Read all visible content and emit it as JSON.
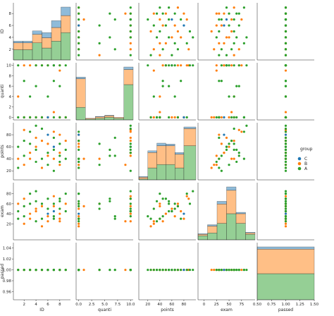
{
  "colors": {
    "C": "#1f77b4",
    "B": "#ff7f0e",
    "A": "#2ca02c"
  },
  "legend": {
    "title": "group",
    "items": [
      "C",
      "B",
      "A"
    ]
  },
  "chart_data": {
    "type": "scatter",
    "kind": "pairplot",
    "hue": "group",
    "variables": [
      "ID",
      "quanti",
      "points",
      "exam",
      "passed"
    ],
    "axes": {
      "ID": {
        "lim": [
          0.2,
          9.8
        ],
        "ticks": [
          2,
          4,
          6,
          8
        ],
        "tick_labels": [
          "2",
          "4",
          "6",
          "8"
        ]
      },
      "quanti": {
        "lim": [
          -0.5,
          10.5
        ],
        "ticks": [
          0.0,
          2.5,
          5.0,
          7.5,
          10.0
        ],
        "tick_labels": [
          "0.0",
          "2.5",
          "5.0",
          "7.5",
          "10.0"
        ],
        "y_ticks": [
          0,
          2,
          4,
          6,
          8,
          10
        ],
        "y_tick_labels": [
          "0",
          "2",
          "4",
          "6",
          "8",
          "10"
        ]
      },
      "points": {
        "lim": [
          5,
          100
        ],
        "ticks": [
          20,
          40,
          60,
          80
        ],
        "tick_labels": [
          "20",
          "40",
          "60",
          "80"
        ]
      },
      "exam": {
        "lim": [
          -12,
          102
        ],
        "ticks": [
          0,
          25,
          50,
          75
        ],
        "tick_labels": [
          "0",
          "25",
          "50",
          "75"
        ],
        "y_ticks": [
          20,
          40,
          60,
          80
        ],
        "y_tick_labels": [
          "20",
          "40",
          "60",
          "80"
        ]
      },
      "passed": {
        "lim": [
          0.5,
          1.5
        ],
        "ticks": [
          0.5,
          0.75,
          1.0,
          1.25,
          1.5
        ],
        "tick_labels": [
          "0.50",
          "0.75",
          "1.00",
          "1.25",
          "1.50"
        ],
        "y_lim": [
          0.945,
          1.05
        ],
        "y_ticks": [
          0.96,
          0.98,
          1.0,
          1.02,
          1.04
        ],
        "y_tick_labels": [
          "0.96",
          "0.98",
          "1.00",
          "1.02",
          "1.04"
        ]
      }
    },
    "points": [
      {
        "group": "A",
        "ID": 1,
        "quanti": 0,
        "points": 25,
        "exam": 30,
        "passed": 1
      },
      {
        "group": "A",
        "ID": 1,
        "quanti": 10,
        "points": 60,
        "exam": 45,
        "passed": 1
      },
      {
        "group": "B",
        "ID": 1,
        "quanti": 4,
        "points": 40,
        "exam": 60,
        "passed": 1
      },
      {
        "group": "A",
        "ID": 2,
        "quanti": 0,
        "points": 70,
        "exam": 55,
        "passed": 1
      },
      {
        "group": "B",
        "ID": 2,
        "quanti": 10,
        "points": 88,
        "exam": 70,
        "passed": 1
      },
      {
        "group": "A",
        "ID": 2,
        "quanti": 7,
        "points": 45,
        "exam": 35,
        "passed": 1
      },
      {
        "group": "B",
        "ID": 2,
        "quanti": 0,
        "points": 30,
        "exam": 20,
        "passed": 1
      },
      {
        "group": "A",
        "ID": 3,
        "quanti": 0,
        "points": 85,
        "exam": 80,
        "passed": 1
      },
      {
        "group": "B",
        "ID": 3,
        "quanti": 10,
        "points": 50,
        "exam": 40,
        "passed": 1
      },
      {
        "group": "A",
        "ID": 3,
        "quanti": 4,
        "points": 65,
        "exam": 60,
        "passed": 1
      },
      {
        "group": "B",
        "ID": 3,
        "quanti": 0,
        "points": 40,
        "exam": 30,
        "passed": 1
      },
      {
        "group": "A",
        "ID": 4,
        "quanti": 10,
        "points": 95,
        "exam": 85,
        "passed": 1
      },
      {
        "group": "B",
        "ID": 4,
        "quanti": 0,
        "points": 60,
        "exam": 50,
        "passed": 1
      },
      {
        "group": "A",
        "ID": 4,
        "quanti": 0,
        "points": 35,
        "exam": 25,
        "passed": 1
      },
      {
        "group": "B",
        "ID": 4,
        "quanti": 10,
        "points": 75,
        "exam": 45,
        "passed": 1
      },
      {
        "group": "A",
        "ID": 4,
        "quanti": 6,
        "points": 55,
        "exam": 65,
        "passed": 1
      },
      {
        "group": "A",
        "ID": 5,
        "quanti": 0,
        "points": 40,
        "exam": 30,
        "passed": 1
      },
      {
        "group": "B",
        "ID": 5,
        "quanti": 10,
        "points": 70,
        "exam": 55,
        "passed": 1
      },
      {
        "group": "A",
        "ID": 5,
        "quanti": 10,
        "points": 90,
        "exam": 60,
        "passed": 1
      },
      {
        "group": "B",
        "ID": 5,
        "quanti": 0,
        "points": 25,
        "exam": 15,
        "passed": 1
      },
      {
        "group": "C",
        "ID": 6,
        "quanti": 0,
        "points": 80,
        "exam": 40,
        "passed": 1
      },
      {
        "group": "A",
        "ID": 6,
        "quanti": 10,
        "points": 50,
        "exam": 70,
        "passed": 1
      },
      {
        "group": "B",
        "ID": 6,
        "quanti": 0,
        "points": 65,
        "exam": 35,
        "passed": 1
      },
      {
        "group": "A",
        "ID": 6,
        "quanti": 4,
        "points": 30,
        "exam": 50,
        "passed": 1
      },
      {
        "group": "B",
        "ID": 6,
        "quanti": 10,
        "points": 45,
        "exam": 25,
        "passed": 1
      },
      {
        "group": "A",
        "ID": 7,
        "quanti": 0,
        "points": 55,
        "exam": 60,
        "passed": 1
      },
      {
        "group": "B",
        "ID": 7,
        "quanti": 10,
        "points": 85,
        "exam": 75,
        "passed": 1
      },
      {
        "group": "A",
        "ID": 7,
        "quanti": 10,
        "points": 20,
        "exam": 35,
        "passed": 1
      },
      {
        "group": "B",
        "ID": 7,
        "quanti": 1,
        "points": 40,
        "exam": 55,
        "passed": 1
      },
      {
        "group": "C",
        "ID": 7,
        "quanti": 10,
        "points": 60,
        "exam": 45,
        "passed": 1
      },
      {
        "group": "A",
        "ID": 7,
        "quanti": 7,
        "points": 75,
        "exam": 30,
        "passed": 1
      },
      {
        "group": "A",
        "ID": 8,
        "quanti": 0,
        "points": 35,
        "exam": 65,
        "passed": 1
      },
      {
        "group": "B",
        "ID": 8,
        "quanti": 10,
        "points": 50,
        "exam": 40,
        "passed": 1
      },
      {
        "group": "A",
        "ID": 8,
        "quanti": 10,
        "points": 65,
        "exam": 50,
        "passed": 1
      },
      {
        "group": "B",
        "ID": 8,
        "quanti": 0,
        "points": 80,
        "exam": 30,
        "passed": 1
      },
      {
        "group": "A",
        "ID": 8,
        "quanti": 6,
        "points": 45,
        "exam": 70,
        "passed": 1
      },
      {
        "group": "B",
        "ID": 8,
        "quanti": 9,
        "points": 30,
        "exam": 25,
        "passed": 1
      },
      {
        "group": "A",
        "ID": 9,
        "quanti": 10,
        "points": 55,
        "exam": 45,
        "passed": 1
      },
      {
        "group": "B",
        "ID": 9,
        "quanti": 0,
        "points": 70,
        "exam": 60,
        "passed": 1
      },
      {
        "group": "A",
        "ID": 9,
        "quanti": 0,
        "points": 40,
        "exam": 80,
        "passed": 1
      }
    ],
    "diagonal_histograms": {
      "ID": {
        "bins": [
          [
            0.2,
            1.8
          ],
          [
            1.8,
            3.4
          ],
          [
            3.4,
            5.0
          ],
          [
            5.0,
            6.6
          ],
          [
            6.6,
            8.2
          ],
          [
            8.2,
            9.8
          ]
        ],
        "counts": {
          "C": [
            0.1,
            0.1,
            0.2,
            0.3,
            0.4,
            0.5
          ],
          "B": [
            0.4,
            0.4,
            0.5,
            0.6,
            0.8,
            1.0
          ],
          "A": [
            0.6,
            0.6,
            1.0,
            0.7,
            1.1,
            1.6
          ]
        }
      },
      "quanti": {
        "bins": [
          [
            -0.5,
            1.3
          ],
          [
            1.3,
            3.2
          ],
          [
            3.2,
            5.0
          ],
          [
            5.0,
            6.8
          ],
          [
            6.8,
            8.7
          ],
          [
            8.7,
            10.5
          ]
        ],
        "counts": {
          "C": [
            0.2,
            0,
            0.05,
            0.05,
            0,
            0.3
          ],
          "B": [
            3.4,
            0.1,
            0.15,
            0.2,
            0.1,
            1.8
          ],
          "A": [
            1.5,
            0.1,
            0.2,
            0.3,
            0.2,
            4.2
          ]
        }
      },
      "points": {
        "bins": [
          [
            5,
            20
          ],
          [
            20,
            35
          ],
          [
            35,
            50
          ],
          [
            50,
            65
          ],
          [
            65,
            80
          ],
          [
            80,
            100
          ]
        ],
        "counts": {
          "C": [
            0.05,
            0.1,
            0.15,
            0.1,
            0.1,
            0.1
          ],
          "B": [
            0.1,
            0.9,
            1.1,
            1.1,
            0.8,
            1.0
          ],
          "A": [
            0.05,
            0.7,
            0.9,
            0.9,
            0.7,
            2.0
          ]
        }
      },
      "exam": {
        "bins": [
          [
            -12,
            7
          ],
          [
            7,
            26
          ],
          [
            26,
            45
          ],
          [
            45,
            64
          ],
          [
            64,
            83
          ],
          [
            83,
            102
          ]
        ],
        "counts": {
          "C": [
            0.05,
            0.1,
            0.2,
            0.25,
            0.1,
            0.05
          ],
          "B": [
            0.1,
            0.5,
            1.4,
            1.7,
            0.7,
            0.1
          ],
          "A": [
            0.3,
            0.5,
            1.2,
            1.9,
            1.2,
            0.4
          ]
        }
      },
      "passed": {
        "bins": [
          [
            0.5,
            1.5
          ]
        ],
        "counts": {
          "C": [
            0.12
          ],
          "B": [
            1.34
          ],
          "A": [
            1.42
          ]
        }
      }
    }
  }
}
